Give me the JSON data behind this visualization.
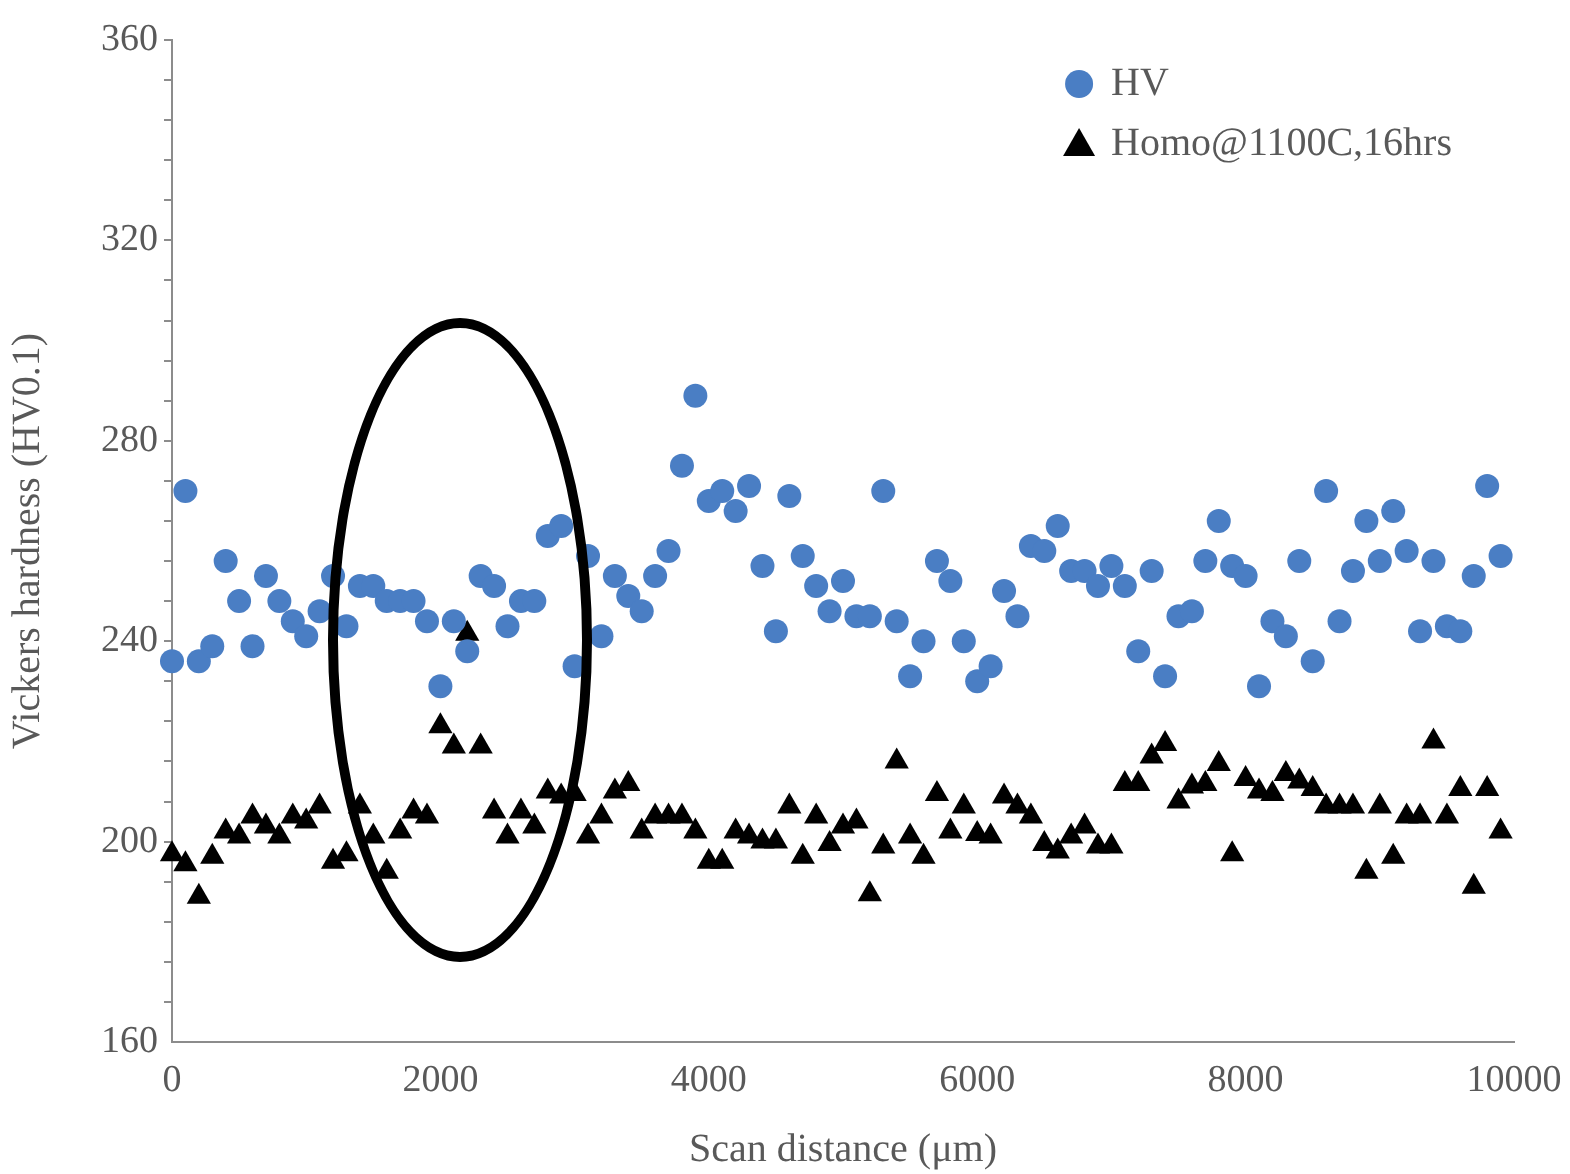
{
  "chart_data": {
    "type": "scatter",
    "xlabel": "Scan distance (μm)",
    "ylabel": "Vickers hardness (HV0.1)",
    "x": [
      0,
      100,
      200,
      300,
      400,
      500,
      600,
      700,
      800,
      900,
      1000,
      1100,
      1200,
      1300,
      1400,
      1500,
      1600,
      1700,
      1800,
      1900,
      2000,
      2100,
      2200,
      2300,
      2400,
      2500,
      2600,
      2700,
      2800,
      2900,
      3000,
      3100,
      3200,
      3300,
      3400,
      3500,
      3600,
      3700,
      3800,
      3900,
      4000,
      4100,
      4200,
      4300,
      4400,
      4500,
      4600,
      4700,
      4800,
      4900,
      5000,
      5100,
      5200,
      5300,
      5400,
      5500,
      5600,
      5700,
      5800,
      5900,
      6000,
      6100,
      6200,
      6300,
      6400,
      6500,
      6600,
      6700,
      6800,
      6900,
      7000,
      7100,
      7200,
      7300,
      7400,
      7500,
      7600,
      7700,
      7800,
      7900,
      8000,
      8100,
      8200,
      8300,
      8400,
      8500,
      8600,
      8700,
      8800,
      8900,
      9000,
      9100,
      9200,
      9300,
      9400,
      9500,
      9600,
      9700,
      9800,
      9900
    ],
    "series": [
      {
        "name": "HV",
        "color": "#4a7ec4",
        "marker": "circle",
        "values": [
          236,
          270,
          236,
          239,
          256,
          248,
          239,
          253,
          248,
          244,
          241,
          246,
          253,
          243,
          251,
          251,
          248,
          248,
          248,
          244,
          231,
          244,
          238,
          253,
          251,
          243,
          248,
          248,
          261,
          263,
          235,
          257,
          241,
          253,
          249,
          246,
          253,
          258,
          275,
          289,
          268,
          270,
          266,
          271,
          255,
          242,
          269,
          257,
          251,
          246,
          252,
          245,
          245,
          270,
          244,
          233,
          240,
          256,
          252,
          240,
          232,
          235,
          250,
          245,
          259,
          258,
          263,
          254,
          254,
          251,
          255,
          251,
          238,
          254,
          233,
          245,
          246,
          256,
          264,
          255,
          253,
          231,
          244,
          241,
          256,
          236,
          270,
          244,
          254,
          264,
          256,
          266,
          258,
          242,
          256,
          243,
          242,
          253,
          271,
          257
        ]
      },
      {
        "name": "Homo@1100C,16hrs",
        "color": "#000000",
        "marker": "triangle",
        "values": [
          197.5,
          195.5,
          189,
          197,
          202,
          201,
          205,
          203,
          201,
          205,
          204,
          207,
          196,
          197.5,
          207,
          201,
          194,
          202,
          206,
          205,
          223,
          219,
          241.5,
          219,
          206,
          201,
          206,
          203,
          210,
          209,
          209.5,
          201,
          205,
          210,
          211.5,
          202,
          205,
          205,
          205,
          202,
          196,
          196,
          202,
          201,
          200,
          200,
          207,
          197,
          205,
          199.5,
          203,
          204,
          189.5,
          199,
          216,
          201,
          197,
          209.5,
          202,
          207,
          201.5,
          201,
          209,
          207,
          205,
          199.5,
          198,
          201,
          203,
          199,
          199,
          211.5,
          211.5,
          217,
          219.5,
          208,
          211,
          211.5,
          215.5,
          197.5,
          212.5,
          210,
          209.5,
          213.5,
          212,
          210.5,
          207,
          207,
          207,
          194,
          207,
          197,
          205,
          205,
          220,
          205,
          210.5,
          191,
          210.5,
          202
        ]
      }
    ],
    "xlim": [
      0,
      10000
    ],
    "xticks": [
      0,
      2000,
      4000,
      6000,
      8000,
      10000
    ],
    "ylim": [
      160,
      360
    ],
    "yticks": [
      160,
      {
        "value": 168,
        "label": null
      },
      {
        "value": 176,
        "label": null
      },
      {
        "value": 184,
        "label": null
      },
      {
        "value": 192,
        "label": null
      },
      200,
      {
        "value": 208,
        "label": null
      },
      {
        "value": 216,
        "label": null
      },
      {
        "value": 224,
        "label": null
      },
      {
        "value": 232,
        "label": null
      },
      240,
      {
        "value": 248,
        "label": null
      },
      {
        "value": 256,
        "label": null
      },
      {
        "value": 264,
        "label": null
      },
      {
        "value": 272,
        "label": null
      },
      280,
      {
        "value": 288,
        "label": null
      },
      {
        "value": 296,
        "label": null
      },
      {
        "value": 304,
        "label": null
      },
      {
        "value": 312,
        "label": null
      },
      320,
      {
        "value": 328,
        "label": null
      },
      {
        "value": 336,
        "label": null
      },
      {
        "value": 344,
        "label": null
      },
      {
        "value": 352,
        "label": null
      },
      360
    ],
    "grid": false,
    "legend": "top right"
  }
}
